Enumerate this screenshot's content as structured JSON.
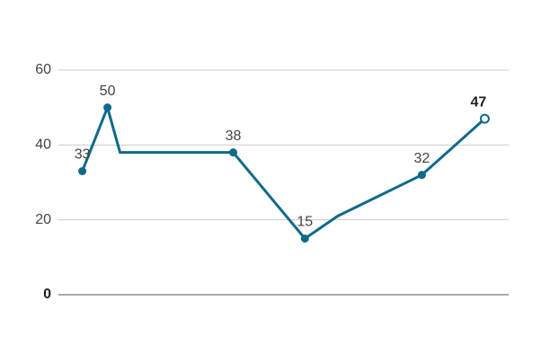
{
  "chart_data": {
    "type": "line",
    "x": [
      0,
      2,
      3,
      12,
      17.7,
      20.3,
      27,
      32
    ],
    "xlim": [
      -1.9,
      33.9
    ],
    "series": [
      {
        "color": "#0e6a8a",
        "values": [
          33,
          50,
          38,
          38,
          15,
          21,
          32,
          47
        ],
        "value_labels": [
          "33",
          "50",
          null,
          "38",
          "15",
          null,
          "32",
          "47"
        ]
      }
    ],
    "ylim": [
      0,
      60
    ],
    "yticks": [
      0,
      20,
      40,
      60
    ],
    "grid": true,
    "highlight_last": true
  }
}
